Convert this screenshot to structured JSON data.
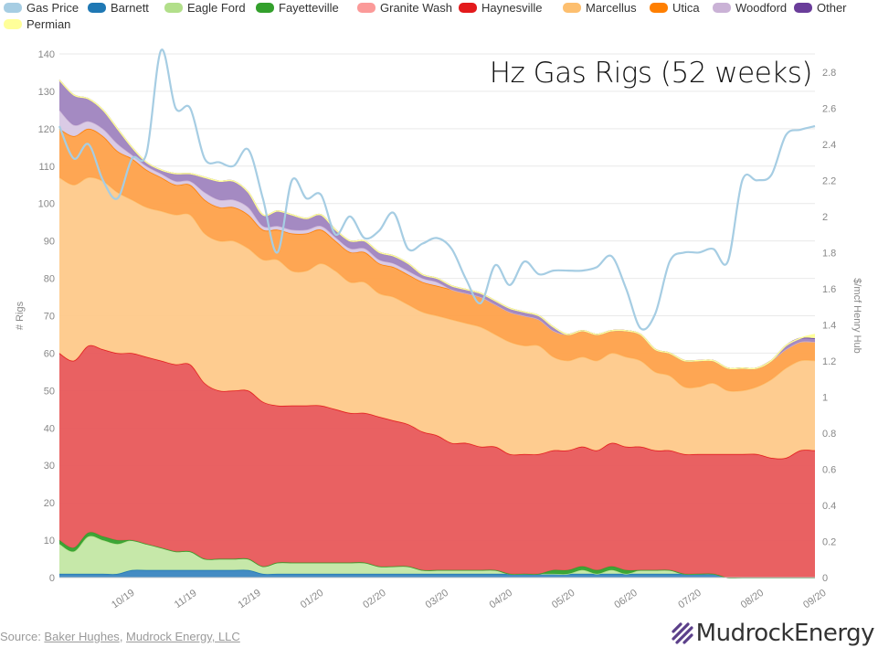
{
  "legend": [
    {
      "name": "Gas Price",
      "color": "#a6cde3"
    },
    {
      "name": "Barnett",
      "color": "#1f78b4"
    },
    {
      "name": "Eagle Ford",
      "color": "#b2df8a"
    },
    {
      "name": "Fayetteville",
      "color": "#33a02c"
    },
    {
      "name": "Granite Wash",
      "color": "#fb9a99"
    },
    {
      "name": "Haynesville",
      "color": "#e31a1c"
    },
    {
      "name": "Marcellus",
      "color": "#fdbf6f"
    },
    {
      "name": "Utica",
      "color": "#ff7f00"
    },
    {
      "name": "Woodford",
      "color": "#cab2d6"
    },
    {
      "name": "Other",
      "color": "#6a3d9a"
    },
    {
      "name": "Permian",
      "color": "#ffff99"
    }
  ],
  "chart_data": {
    "type": "area",
    "title": "Hz Gas Rigs (52 weeks)",
    "ylabel": "# Rigs",
    "y2label": "$/mcf Henry Hub",
    "ylim": [
      0,
      140
    ],
    "y2lim": [
      0,
      2.9
    ],
    "yticks": [
      0,
      10,
      20,
      30,
      40,
      50,
      60,
      70,
      80,
      90,
      100,
      110,
      120,
      130,
      140
    ],
    "y2ticks": [
      "0",
      "0.2",
      "0.4",
      "0.6",
      "0.8",
      "1",
      "1.2",
      "1.4",
      "1.6",
      "1.8",
      "2",
      "2.2",
      "2.4",
      "2.6",
      "2.8"
    ],
    "x_tick_labels": [
      "10/19",
      "11/19",
      "12/19",
      "01/20",
      "02/20",
      "03/20",
      "04/20",
      "05/20",
      "06/20",
      "07/20",
      "08/20",
      "09/20"
    ],
    "x_tick_positions": [
      4.5,
      8.8,
      13.2,
      17.5,
      21.8,
      26.1,
      30.5,
      34.8,
      39.1,
      43.5,
      47.8,
      52.1
    ],
    "x": [
      0,
      1,
      2,
      3,
      4,
      5,
      6,
      7,
      8,
      9,
      10,
      11,
      12,
      13,
      14,
      15,
      16,
      17,
      18,
      19,
      20,
      21,
      22,
      23,
      24,
      25,
      26,
      27,
      28,
      29,
      30,
      31,
      32,
      33,
      34,
      35,
      36,
      37,
      38,
      39,
      40,
      41,
      42,
      43,
      44,
      45,
      46,
      47,
      48,
      49,
      50,
      51,
      52
    ],
    "grid": true,
    "stacked": true,
    "series": [
      {
        "name": "Barnett",
        "values": [
          1,
          1,
          1,
          1,
          1,
          2,
          2,
          2,
          2,
          2,
          2,
          2,
          2,
          2,
          1,
          1,
          1,
          1,
          1,
          1,
          1,
          1,
          1,
          1,
          1,
          1,
          1,
          1,
          1,
          1,
          1,
          1,
          1,
          1,
          1,
          1,
          1,
          1,
          1,
          1,
          1,
          1,
          1,
          1,
          1,
          1,
          0,
          0,
          0,
          0,
          0,
          0,
          0
        ]
      },
      {
        "name": "Eagle Ford",
        "values": [
          8,
          6,
          10,
          9,
          8,
          8,
          7,
          6,
          5,
          5,
          3,
          3,
          3,
          3,
          2,
          3,
          3,
          3,
          3,
          3,
          3,
          3,
          2,
          2,
          2,
          1,
          1,
          1,
          1,
          1,
          1,
          0,
          0,
          0,
          0,
          0,
          1,
          0,
          1,
          0,
          1,
          1,
          1,
          0,
          0,
          0,
          0,
          0,
          0,
          0,
          0,
          0,
          0
        ]
      },
      {
        "name": "Fayetteville",
        "values": [
          1,
          1,
          1,
          1,
          1,
          0,
          0,
          0,
          0,
          0,
          0,
          0,
          0,
          0,
          0,
          0,
          0,
          0,
          0,
          0,
          0,
          0,
          0,
          0,
          0,
          0,
          0,
          0,
          0,
          0,
          0,
          0,
          0,
          0,
          1,
          1,
          1,
          1,
          1,
          1,
          0,
          0,
          0,
          0,
          0,
          0,
          0,
          0,
          0,
          0,
          0,
          0,
          0
        ]
      },
      {
        "name": "Granite Wash",
        "values": [
          0,
          0,
          0,
          0,
          0,
          0,
          0,
          0,
          0,
          0,
          0,
          0,
          0,
          0,
          0,
          0,
          0,
          0,
          0,
          0,
          0,
          0,
          0,
          0,
          0,
          0,
          0,
          0,
          0,
          0,
          0,
          0,
          0,
          0,
          0,
          0,
          0,
          0,
          0,
          0,
          0,
          0,
          0,
          0,
          0,
          0,
          0,
          0,
          0,
          0,
          0,
          0,
          0
        ]
      },
      {
        "name": "Haynesville",
        "values": [
          50,
          50,
          50,
          50,
          50,
          50,
          50,
          50,
          50,
          50,
          47,
          45,
          45,
          45,
          44,
          42,
          42,
          42,
          42,
          41,
          40,
          40,
          40,
          39,
          38,
          37,
          36,
          34,
          34,
          33,
          33,
          32,
          32,
          32,
          32,
          32,
          32,
          32,
          33,
          33,
          33,
          32,
          32,
          32,
          32,
          32,
          33,
          33,
          33,
          32,
          32,
          34,
          34
        ]
      },
      {
        "name": "Marcellus",
        "values": [
          47,
          47,
          45,
          45,
          43,
          41,
          40,
          40,
          40,
          40,
          40,
          40,
          40,
          38,
          38,
          39,
          36,
          36,
          38,
          37,
          35,
          35,
          33,
          33,
          32,
          32,
          32,
          33,
          32,
          32,
          30,
          30,
          29,
          29,
          25,
          24,
          24,
          24,
          24,
          24,
          23,
          21,
          20,
          18,
          18,
          19,
          17,
          17,
          18,
          21,
          24,
          24,
          24
        ]
      },
      {
        "name": "Utica",
        "values": [
          13,
          13,
          13,
          12,
          11,
          11,
          10,
          9,
          8,
          8,
          9,
          9,
          9,
          9,
          8,
          8,
          10,
          10,
          9,
          8,
          8,
          8,
          8,
          8,
          8,
          8,
          8,
          8,
          8,
          8,
          8,
          8,
          8,
          7,
          7,
          7,
          7,
          7,
          6,
          7,
          7,
          6,
          6,
          7,
          7,
          6,
          6,
          6,
          5,
          5,
          5,
          5,
          5
        ]
      },
      {
        "name": "Woodford",
        "values": [
          5,
          3,
          2,
          2,
          2,
          1,
          1,
          1,
          1,
          1,
          2,
          2,
          2,
          2,
          1,
          1,
          1,
          1,
          1,
          1,
          1,
          1,
          1,
          1,
          1,
          1,
          1,
          0,
          0,
          0,
          0,
          0,
          0,
          0,
          0,
          0,
          0,
          0,
          0,
          0,
          0,
          0,
          0,
          0,
          0,
          0,
          0,
          0,
          0,
          0,
          0,
          0,
          0
        ]
      },
      {
        "name": "Other",
        "values": [
          8,
          8,
          6,
          5,
          4,
          2,
          1,
          1,
          2,
          2,
          4,
          5,
          5,
          4,
          3,
          4,
          4,
          3,
          3,
          2,
          2,
          2,
          2,
          2,
          2,
          1,
          1,
          1,
          1,
          1,
          1,
          1,
          1,
          1,
          1,
          0,
          0,
          0,
          0,
          0,
          0,
          0,
          0,
          0,
          0,
          0,
          0,
          0,
          0,
          0,
          1,
          1,
          1
        ]
      },
      {
        "name": "Permian",
        "values": [
          0,
          0,
          0,
          0,
          0,
          0,
          0,
          0,
          0,
          0,
          0,
          0,
          0,
          0,
          0,
          0,
          0,
          0,
          0,
          0,
          0,
          0,
          0,
          0,
          0,
          0,
          0,
          0,
          0,
          0,
          0,
          0,
          0,
          0,
          0,
          0,
          0,
          0,
          0,
          0,
          0,
          0,
          0,
          0,
          0,
          0,
          0,
          0,
          0,
          0,
          0,
          0,
          1
        ]
      }
    ],
    "line_series": {
      "name": "Gas Price",
      "axis": "right",
      "values": [
        2.5,
        2.32,
        2.4,
        2.2,
        2.1,
        2.32,
        2.35,
        2.92,
        2.6,
        2.6,
        2.32,
        2.3,
        2.28,
        2.37,
        2.1,
        1.8,
        2.2,
        2.1,
        2.12,
        1.9,
        2.0,
        1.88,
        1.92,
        2.02,
        1.82,
        1.85,
        1.88,
        1.82,
        1.65,
        1.52,
        1.73,
        1.62,
        1.75,
        1.68,
        1.7,
        1.7,
        1.7,
        1.72,
        1.78,
        1.6,
        1.38,
        1.46,
        1.75,
        1.8,
        1.8,
        1.82,
        1.75,
        2.2,
        2.2,
        2.23,
        2.45,
        2.48,
        2.5
      ]
    }
  },
  "source": {
    "prefix": "Source: ",
    "link1": "Baker Hughes",
    "sep": ", ",
    "link2": "Mudrock Energy, LLC"
  },
  "brand": {
    "name": "MudrockEnergy",
    "primary_color": "#5b3f8a"
  }
}
